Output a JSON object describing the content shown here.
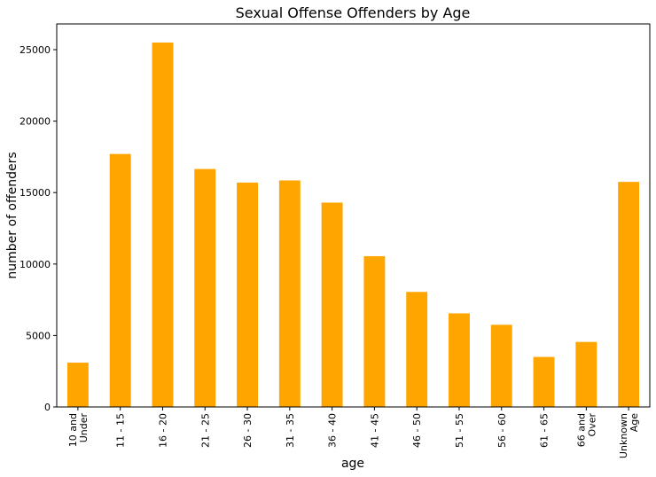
{
  "chart_data": {
    "type": "bar",
    "title": "Sexual Offense Offenders by Age",
    "xlabel": "age",
    "ylabel": "number of offenders",
    "categories": [
      [
        "10 and",
        "Under"
      ],
      [
        "11 - 15"
      ],
      [
        "16 - 20"
      ],
      [
        "21 - 25"
      ],
      [
        "26 - 30"
      ],
      [
        "31 - 35"
      ],
      [
        "36 - 40"
      ],
      [
        "41 - 45"
      ],
      [
        "46 - 50"
      ],
      [
        "51 - 55"
      ],
      [
        "56 - 60"
      ],
      [
        "61 - 65"
      ],
      [
        "66 and",
        "Over"
      ],
      [
        "Unknown",
        "Age"
      ]
    ],
    "values": [
      3100,
      17700,
      25500,
      16650,
      15700,
      15850,
      14300,
      10550,
      8050,
      6550,
      5750,
      3500,
      4550,
      15750
    ],
    "ylim": [
      0,
      26800
    ],
    "yticks": [
      0,
      5000,
      10000,
      15000,
      20000,
      25000
    ],
    "bar_color": "#ffa500",
    "grid": false,
    "legend": "none"
  }
}
